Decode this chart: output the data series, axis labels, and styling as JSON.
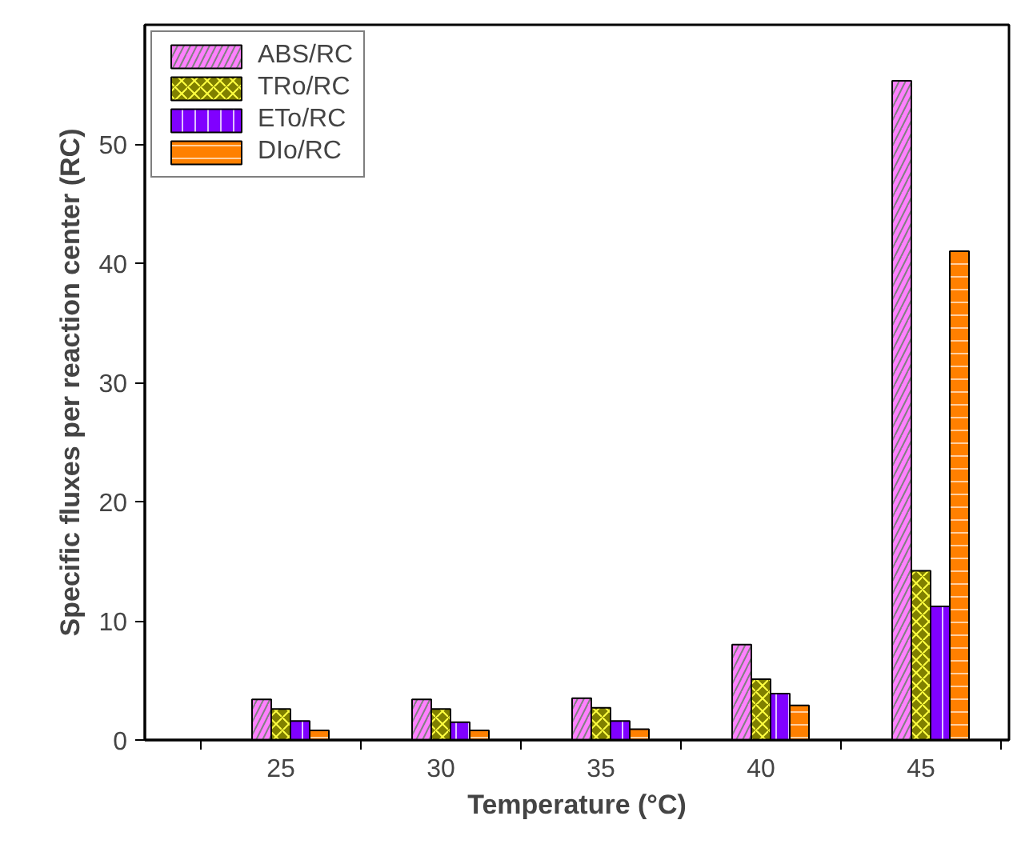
{
  "chart_data": {
    "type": "bar",
    "xlabel": "Temperature (°C)",
    "ylabel": "Specific fluxes per reaction center (RC)",
    "x": [
      25,
      30,
      35,
      40,
      45
    ],
    "xlim": [
      20.75,
      47.75
    ],
    "xticks": [
      {
        "value": 22.5,
        "label": null
      },
      25,
      {
        "value": 27.5,
        "label": null
      },
      30,
      {
        "value": 32.5,
        "label": null
      },
      35,
      {
        "value": 37.5,
        "label": null
      },
      40,
      {
        "value": 42.5,
        "label": null
      },
      45,
      {
        "value": 47.5,
        "label": null
      }
    ],
    "ylim": [
      0,
      60
    ],
    "yticks": [
      0,
      10,
      20,
      30,
      40,
      50
    ],
    "legend": "top left",
    "grid": false,
    "series": [
      {
        "name": "ABS/RC",
        "color": "#ff80ff",
        "values": [
          3.4,
          3.4,
          3.5,
          8.0,
          55.3
        ]
      },
      {
        "name": "TRo/RC",
        "color": "#808000",
        "values": [
          2.6,
          2.6,
          2.7,
          5.1,
          14.2
        ]
      },
      {
        "name": "ETo/RC",
        "color": "#8000ff",
        "values": [
          1.6,
          1.5,
          1.6,
          3.9,
          11.2
        ]
      },
      {
        "name": "DIo/RC",
        "color": "#ff8000",
        "values": [
          0.8,
          0.8,
          0.9,
          2.9,
          41.0
        ]
      }
    ]
  }
}
